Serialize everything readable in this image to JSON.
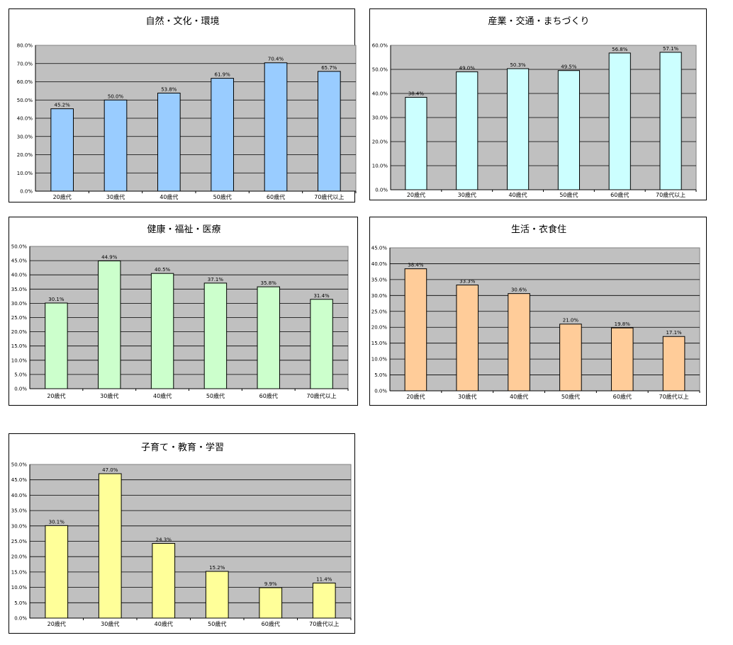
{
  "chart_data": [
    {
      "type": "bar",
      "title": "自然・文化・環境",
      "categories": [
        "20歳代",
        "30歳代",
        "40歳代",
        "50歳代",
        "60歳代",
        "70歳代以上"
      ],
      "values": [
        45.2,
        50.0,
        53.8,
        61.9,
        70.4,
        65.7
      ],
      "value_labels": [
        "45.2%",
        "50.0%",
        "53.8%",
        "61.9%",
        "70.4%",
        "65.7%"
      ],
      "ylim": [
        0,
        80
      ],
      "yticks": [
        "0.0%",
        "10.0%",
        "20.0%",
        "30.0%",
        "40.0%",
        "50.0%",
        "60.0%",
        "70.0%",
        "80.0%"
      ],
      "bar_color": "#99ccff",
      "plot_bg": "#c0c0c0",
      "grid": true,
      "xlabel": "",
      "ylabel": ""
    },
    {
      "type": "bar",
      "title": "産業・交通・まちづくり",
      "categories": [
        "20歳代",
        "30歳代",
        "40歳代",
        "50歳代",
        "60歳代",
        "70歳代以上"
      ],
      "values": [
        38.4,
        49.0,
        50.3,
        49.5,
        56.8,
        57.1
      ],
      "value_labels": [
        "38.4%",
        "49.0%",
        "50.3%",
        "49.5%",
        "56.8%",
        "57.1%"
      ],
      "ylim": [
        0,
        60
      ],
      "yticks": [
        "0.0%",
        "10.0%",
        "20.0%",
        "30.0%",
        "40.0%",
        "50.0%",
        "60.0%"
      ],
      "bar_color": "#ccffff",
      "plot_bg": "#c0c0c0",
      "grid": true,
      "xlabel": "",
      "ylabel": ""
    },
    {
      "type": "bar",
      "title": "健康・福祉・医療",
      "categories": [
        "20歳代",
        "30歳代",
        "40歳代",
        "50歳代",
        "60歳代",
        "70歳代以上"
      ],
      "values": [
        30.1,
        44.9,
        40.5,
        37.1,
        35.8,
        31.4
      ],
      "value_labels": [
        "30.1%",
        "44.9%",
        "40.5%",
        "37.1%",
        "35.8%",
        "31.4%"
      ],
      "ylim": [
        0,
        50
      ],
      "yticks": [
        "0.0%",
        "5.0%",
        "10.0%",
        "15.0%",
        "20.0%",
        "25.0%",
        "30.0%",
        "35.0%",
        "40.0%",
        "45.0%",
        "50.0%"
      ],
      "bar_color": "#ccffcc",
      "plot_bg": "#c0c0c0",
      "grid": true,
      "xlabel": "",
      "ylabel": ""
    },
    {
      "type": "bar",
      "title": "生活・衣食住",
      "categories": [
        "20歳代",
        "30歳代",
        "40歳代",
        "50歳代",
        "60歳代",
        "70歳代以上"
      ],
      "values": [
        38.4,
        33.3,
        30.6,
        21.0,
        19.8,
        17.1
      ],
      "value_labels": [
        "38.4%",
        "33.3%",
        "30.6%",
        "21.0%",
        "19.8%",
        "17.1%"
      ],
      "ylim": [
        0,
        45
      ],
      "yticks": [
        "0.0%",
        "5.0%",
        "10.0%",
        "15.0%",
        "20.0%",
        "25.0%",
        "30.0%",
        "35.0%",
        "40.0%",
        "45.0%"
      ],
      "bar_color": "#ffcc99",
      "plot_bg": "#c0c0c0",
      "grid": true,
      "xlabel": "",
      "ylabel": ""
    },
    {
      "type": "bar",
      "title": "子育て・教育・学習",
      "categories": [
        "20歳代",
        "30歳代",
        "40歳代",
        "50歳代",
        "60歳代",
        "70歳代以上"
      ],
      "values": [
        30.1,
        47.0,
        24.3,
        15.2,
        9.9,
        11.4
      ],
      "value_labels": [
        "30.1%",
        "47.0%",
        "24.3%",
        "15.2%",
        "9.9%",
        "11.4%"
      ],
      "ylim": [
        0,
        50
      ],
      "yticks": [
        "0.0%",
        "5.0%",
        "10.0%",
        "15.0%",
        "20.0%",
        "25.0%",
        "30.0%",
        "35.0%",
        "40.0%",
        "45.0%",
        "50.0%"
      ],
      "bar_color": "#ffff99",
      "plot_bg": "#c0c0c0",
      "grid": true,
      "xlabel": "",
      "ylabel": ""
    }
  ]
}
